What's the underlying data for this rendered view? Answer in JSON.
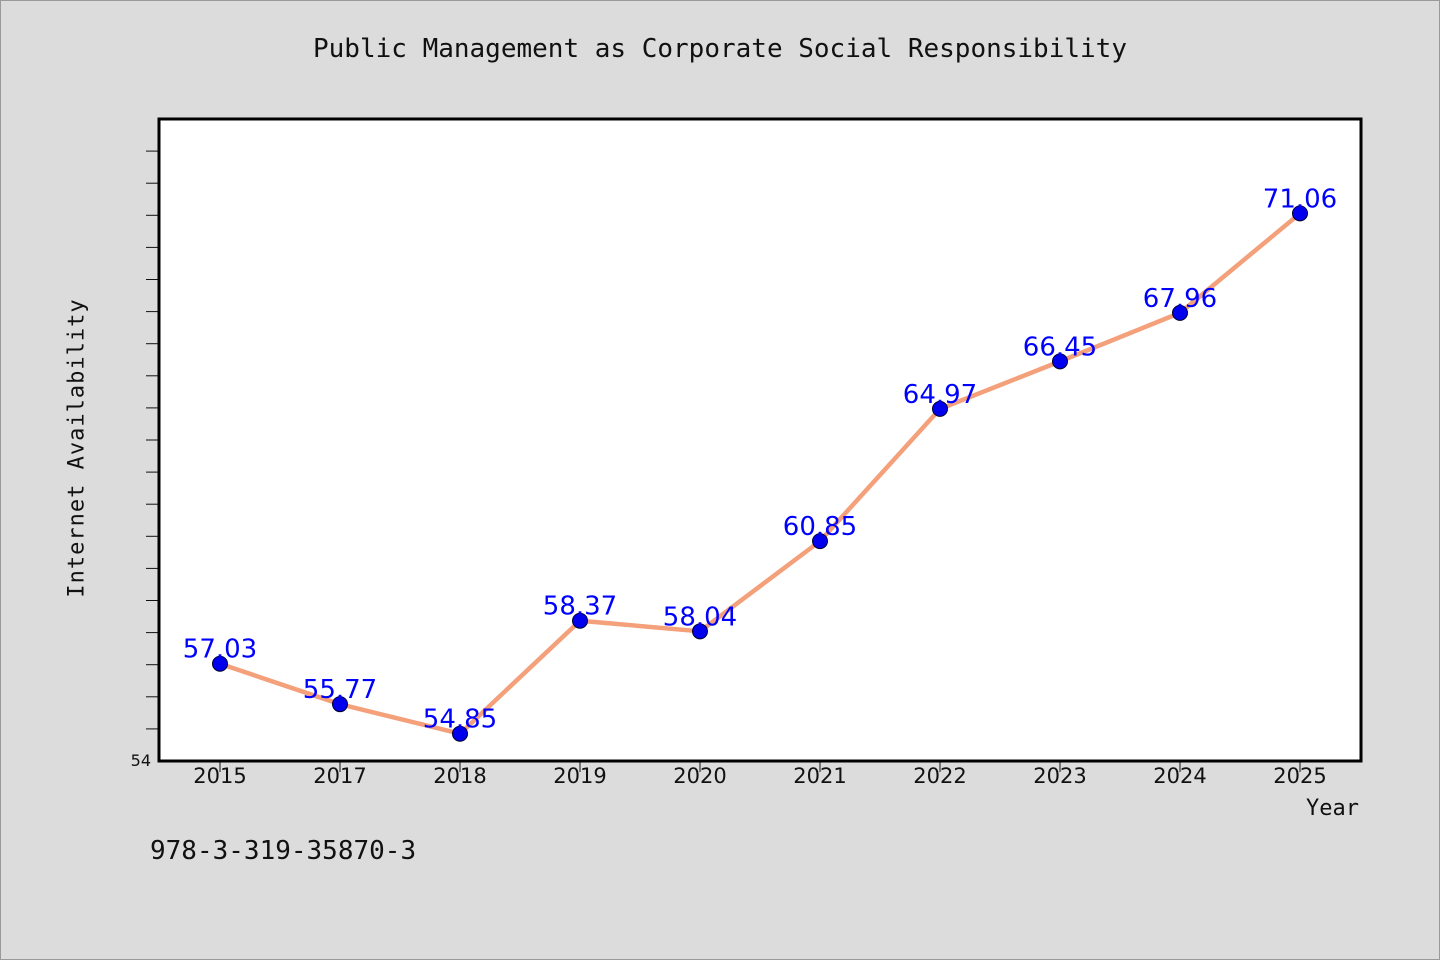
{
  "chart_data": {
    "type": "line",
    "title": "Public Management as Corporate Social Responsibility",
    "xlabel": "Year",
    "ylabel": "Internet Availability",
    "categories": [
      "2015",
      "2017",
      "2018",
      "2019",
      "2020",
      "2021",
      "2022",
      "2023",
      "2024",
      "2025"
    ],
    "series": [
      {
        "values": [
          57.03,
          55.77,
          54.85,
          58.37,
          58.04,
          60.85,
          64.97,
          66.45,
          67.96,
          71.06
        ],
        "data_labels": [
          "57.03",
          "55.77",
          "54.85",
          "58.37",
          "58.04",
          "60.85",
          "64.97",
          "66.45",
          "67.96",
          "71.06"
        ]
      }
    ],
    "ylim": [
      54,
      74
    ],
    "y_tick_labels": [
      "54"
    ],
    "grid": false,
    "colors": {
      "line": "#f4a07a",
      "marker": "#0000ee",
      "label": "#0000ff",
      "plot_bg": "#ffffff",
      "page_bg": "#dcdcdc"
    }
  },
  "footnote": "978-3-319-35870-3"
}
